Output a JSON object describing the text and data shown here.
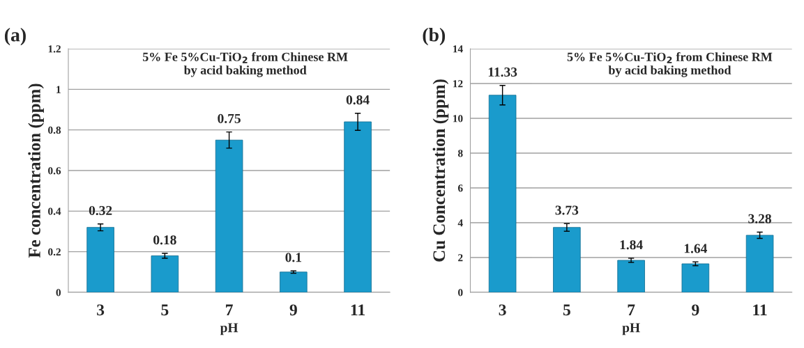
{
  "chart_data": [
    {
      "type": "bar",
      "title": "5% Fe 5%Cu-TiO$_{2}$ from Chinese RM\nby acid baking method",
      "xlabel": "pH",
      "ylabel": "Fe concentration (ppm)",
      "annotations": [
        "(a)"
      ],
      "categories": [
        "3",
        "5",
        "7",
        "9",
        "11"
      ],
      "values": [
        0.32,
        0.18,
        0.75,
        0.1,
        0.84
      ],
      "errors": [
        0.017,
        0.012,
        0.04,
        0.006,
        0.042
      ],
      "color": "#1a9bcc",
      "ylim": [
        0,
        1.2
      ],
      "yticks": [
        0,
        0.2,
        0.4,
        0.6,
        0.8,
        1,
        1.2
      ],
      "grid": "y",
      "data_labels": true
    },
    {
      "type": "bar",
      "title": "5% Fe 5%Cu-TiO$_{2}$ from Chinese RM\nby acid baking method",
      "xlabel": "pH",
      "ylabel": "Cu Concentration (ppm)",
      "annotations": [
        "(b)"
      ],
      "categories": [
        "3",
        "5",
        "7",
        "9",
        "11"
      ],
      "values": [
        11.33,
        3.73,
        1.84,
        1.64,
        3.28
      ],
      "errors": [
        0.56,
        0.22,
        0.12,
        0.11,
        0.18
      ],
      "color": "#1a9bcc",
      "ylim": [
        0,
        14
      ],
      "yticks": [
        0,
        2,
        4,
        6,
        8,
        10,
        12,
        14
      ],
      "grid": "y",
      "data_labels": true
    }
  ]
}
